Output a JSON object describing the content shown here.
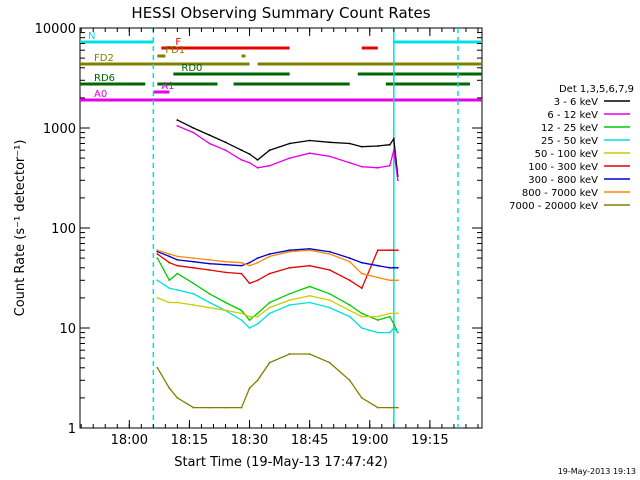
{
  "chart_data": {
    "type": "line",
    "title": "HESSI Observing Summary Count Rates",
    "xlabel": "Start Time (19-May-13 17:47:42)",
    "ylabel": "Count Rate (s⁻¹ detector⁻¹)",
    "yscale": "log",
    "xlim": [
      "17:47:42",
      "19:28:00"
    ],
    "ylim": [
      1,
      10000
    ],
    "x_ticks": [
      "18:00",
      "18:15",
      "18:30",
      "18:45",
      "19:00",
      "19:15"
    ],
    "y_ticks": [
      "1",
      "10",
      "100",
      "1000",
      "10000"
    ],
    "legend_title": "Det 1,3,5,6,7,9",
    "legend_position": "right",
    "timestamp": "19-May-2013 19:13",
    "x_times": [
      "18:06",
      "18:07",
      "18:10",
      "18:12",
      "18:16",
      "18:20",
      "18:24",
      "18:28",
      "18:30",
      "18:32",
      "18:35",
      "18:40",
      "18:45",
      "18:50",
      "18:55",
      "18:58",
      "19:02",
      "19:05",
      "19:06",
      "19:07",
      "19:10"
    ],
    "series": [
      {
        "name": "3 - 6 keV",
        "color": "#000000",
        "values": [
          null,
          null,
          null,
          1200,
          1000,
          850,
          720,
          600,
          550,
          480,
          600,
          700,
          750,
          720,
          700,
          650,
          660,
          680,
          780,
          330,
          null
        ]
      },
      {
        "name": "6 - 12 keV",
        "color": "#e600e6",
        "values": [
          null,
          null,
          null,
          1050,
          900,
          700,
          600,
          480,
          450,
          400,
          420,
          500,
          560,
          520,
          450,
          410,
          400,
          420,
          600,
          300,
          null
        ]
      },
      {
        "name": "12 - 25 keV",
        "color": "#00cc00",
        "values": [
          null,
          50,
          30,
          35,
          28,
          22,
          18,
          15,
          12,
          14,
          18,
          22,
          26,
          22,
          17,
          14,
          12,
          13,
          11,
          9,
          null
        ]
      },
      {
        "name": "25 - 50 keV",
        "color": "#00e0e0",
        "values": [
          null,
          30,
          25,
          24,
          22,
          18,
          15,
          12,
          10,
          11,
          14,
          17,
          18,
          16,
          13,
          10,
          9,
          9,
          10,
          9,
          null
        ]
      },
      {
        "name": "50 - 100 keV",
        "color": "#cccc00",
        "values": [
          null,
          20,
          18,
          18,
          17,
          16,
          15,
          14,
          13,
          13,
          16,
          19,
          21,
          19,
          15,
          13,
          13,
          14,
          14,
          14,
          null
        ]
      },
      {
        "name": "100 - 300 keV",
        "color": "#e60000",
        "values": [
          null,
          55,
          45,
          42,
          40,
          38,
          36,
          35,
          28,
          30,
          35,
          40,
          42,
          38,
          30,
          25,
          60,
          60,
          60,
          60,
          null
        ]
      },
      {
        "name": "300 - 800 keV",
        "color": "#0000cc",
        "values": [
          null,
          58,
          52,
          48,
          46,
          44,
          43,
          42,
          45,
          50,
          55,
          60,
          62,
          58,
          50,
          45,
          42,
          40,
          40,
          40,
          null
        ]
      },
      {
        "name": "800 - 7000 keV",
        "color": "#ff8800",
        "values": [
          null,
          60,
          55,
          52,
          50,
          48,
          46,
          45,
          42,
          45,
          52,
          58,
          60,
          55,
          46,
          35,
          32,
          30,
          30,
          30,
          null
        ]
      },
      {
        "name": "7000 - 20000 keV",
        "color": "#808000",
        "values": [
          null,
          4,
          2.5,
          2,
          1.6,
          1.6,
          1.6,
          1.6,
          2.5,
          3,
          4.5,
          5.5,
          5.5,
          4.5,
          3,
          2,
          1.6,
          1.6,
          1.6,
          1.6,
          null
        ]
      }
    ],
    "flag_bars": [
      {
        "label": "N",
        "color": "#00e0e0",
        "segments": [
          [
            "17:47:42",
            "18:06"
          ],
          [
            "19:06",
            "19:28"
          ]
        ]
      },
      {
        "label": "F",
        "color": "#e60000",
        "segments": [
          [
            "18:08",
            "18:40"
          ],
          [
            "18:58",
            "19:02"
          ]
        ]
      },
      {
        "label": "FD1",
        "color": "#808000",
        "segments": [
          [
            "18:07",
            "18:09"
          ],
          [
            "18:28",
            "18:29"
          ]
        ]
      },
      {
        "label": "FD2",
        "color": "#808000",
        "segments": [
          [
            "17:47:42",
            "18:30"
          ],
          [
            "18:32",
            "19:28"
          ]
        ]
      },
      {
        "label": "RD0",
        "color": "#006600",
        "segments": [
          [
            "18:11",
            "18:40"
          ],
          [
            "18:57",
            "19:28"
          ]
        ]
      },
      {
        "label": "RD6",
        "color": "#006600",
        "segments": [
          [
            "17:47:42",
            "18:04"
          ],
          [
            "18:07",
            "18:22"
          ],
          [
            "18:26",
            "18:55"
          ],
          [
            "19:04",
            "19:25"
          ]
        ]
      },
      {
        "label": "A1",
        "color": "#e600e6",
        "segments": [
          [
            "18:06",
            "18:10"
          ]
        ]
      },
      {
        "label": "A0",
        "color": "#e600e6",
        "segments": [
          [
            "17:47:42",
            "19:28"
          ]
        ]
      }
    ],
    "vertical_lines": [
      {
        "time": "18:06",
        "color": "#00e0e0",
        "style": "dashed"
      },
      {
        "time": "19:06",
        "color": "#00e0e0",
        "style": "solid"
      },
      {
        "time": "19:22",
        "color": "#00e0e0",
        "style": "dashed"
      }
    ]
  }
}
